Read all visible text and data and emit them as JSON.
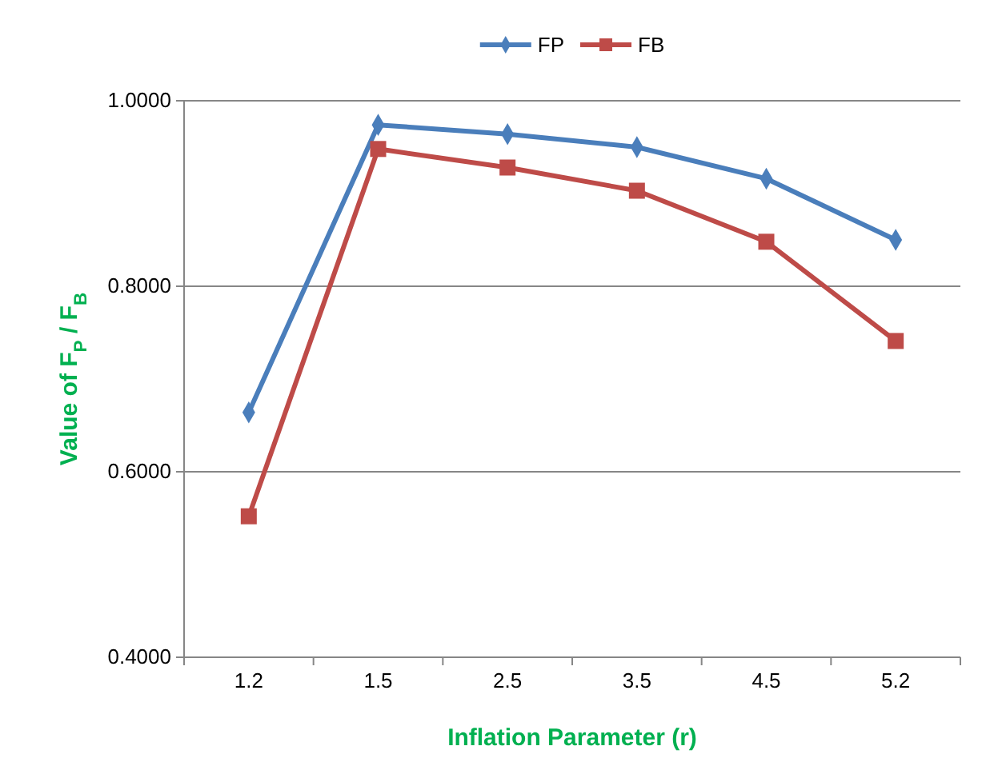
{
  "chart_data": {
    "type": "line",
    "xlabel": "Inflation Parameter (r)",
    "ylabel": "Value of F$_{P}$ / F$_{B}$",
    "categories": [
      "1.2",
      "1.5",
      "2.5",
      "3.5",
      "4.5",
      "5.2"
    ],
    "series": [
      {
        "name": "FP",
        "color": "#4a7ebb",
        "marker": "diamond",
        "values": [
          0.664,
          0.974,
          0.964,
          0.95,
          0.916,
          0.85
        ]
      },
      {
        "name": "FB",
        "color": "#be4b48",
        "marker": "square",
        "values": [
          0.552,
          0.948,
          0.928,
          0.903,
          0.848,
          0.741
        ]
      }
    ],
    "ylim": [
      0.4,
      1.0
    ],
    "yticks": [
      {
        "value": 0.4,
        "label": "0.4000"
      },
      {
        "value": 0.6,
        "label": "0.6000"
      },
      {
        "value": 0.8,
        "label": "0.8000"
      },
      {
        "value": 1.0,
        "label": "1.0000"
      }
    ],
    "grid": "y",
    "legend": "top",
    "line_style": "solid"
  }
}
